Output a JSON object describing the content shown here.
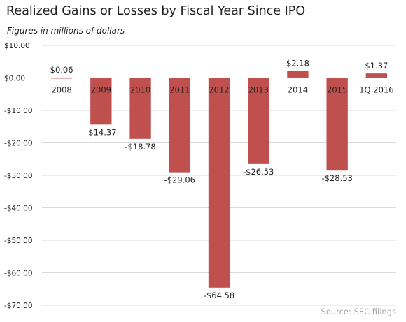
{
  "chart_data": {
    "type": "bar",
    "title": "Realized Gains or Losses by Fiscal Year Since IPO",
    "subtitle": "Figures in millions of dollars",
    "source": "Source: SEC filings",
    "categories": [
      "2008",
      "2009",
      "2010",
      "2011",
      "2012",
      "2013",
      "2014",
      "2015",
      "1Q 2016"
    ],
    "values": [
      0.06,
      -14.37,
      -18.78,
      -29.06,
      -64.58,
      -26.53,
      2.18,
      -28.53,
      1.37
    ],
    "data_labels": [
      "$0.06",
      "-$14.37",
      "-$18.78",
      "-$29.06",
      "-$64.58",
      "-$26.53",
      "$2.18",
      "-$28.53",
      "$1.37"
    ],
    "y_ticks": [
      10,
      0,
      -10,
      -20,
      -30,
      -40,
      -50,
      -60,
      -70
    ],
    "y_tick_labels": [
      "$10.00",
      "$0.00",
      "-$10.00",
      "-$20.00",
      "-$30.00",
      "-$40.00",
      "-$50.00",
      "-$60.00",
      "-$70.00"
    ],
    "ylim": [
      -70,
      10
    ],
    "grid": true,
    "legend": "none",
    "colors": {
      "bar": "#c0504d",
      "grid": "#d9d9d9",
      "text": "#222222",
      "source": "#a8a8a8"
    }
  }
}
